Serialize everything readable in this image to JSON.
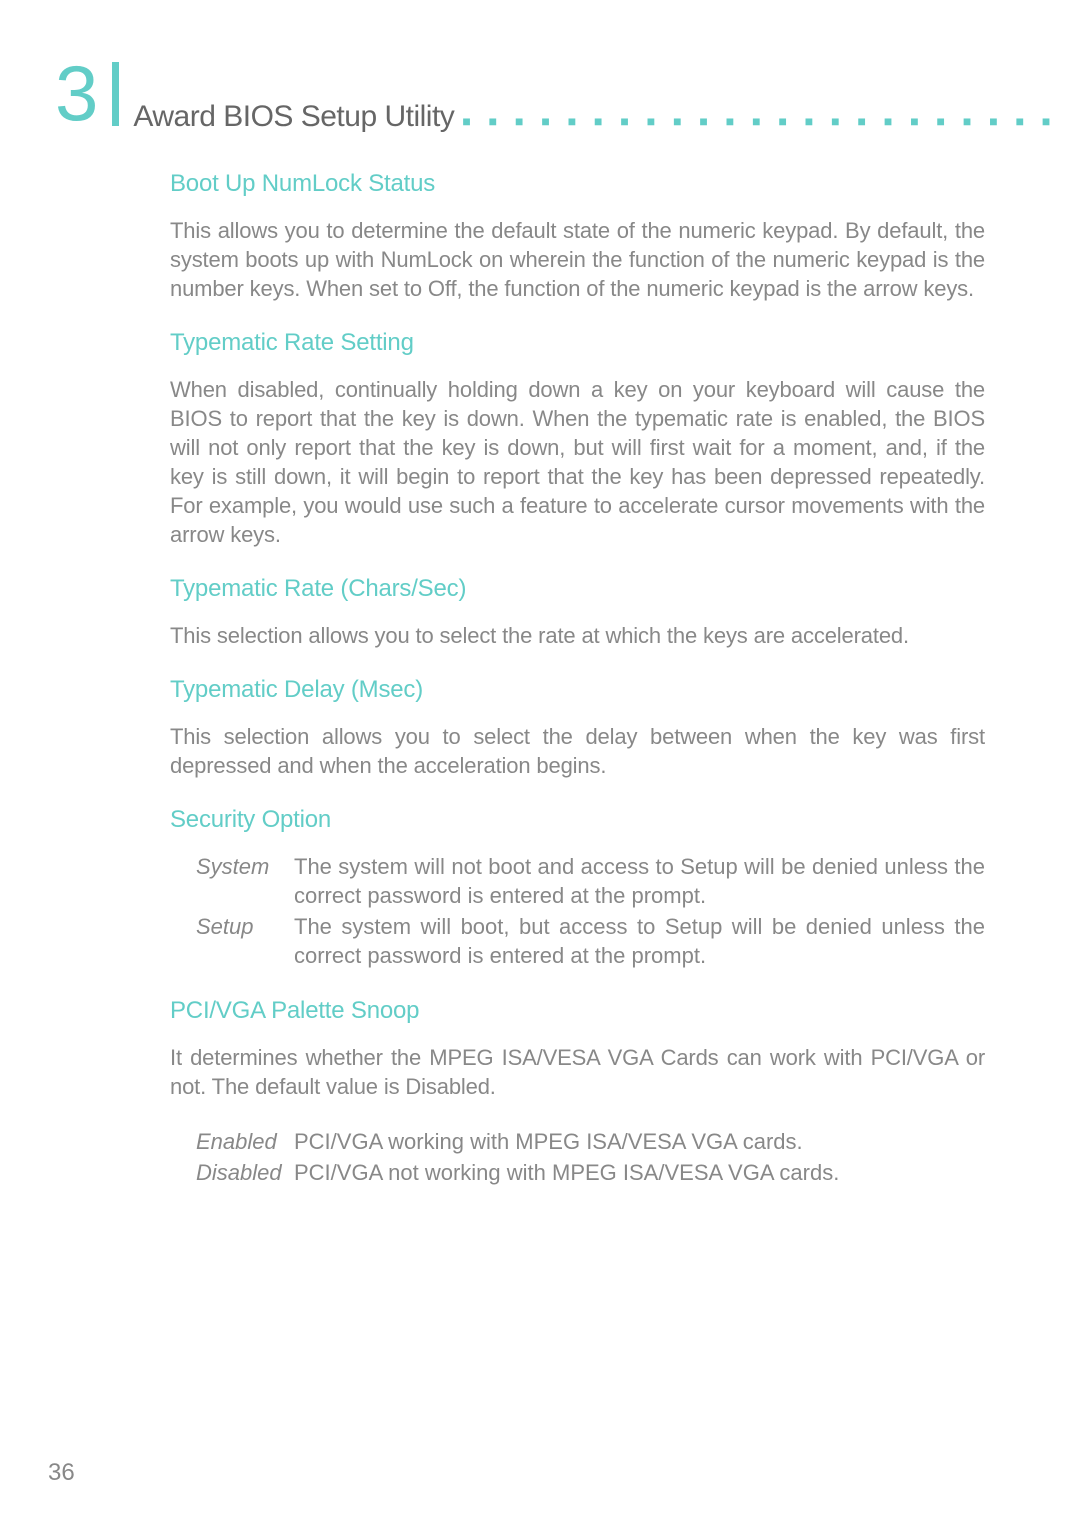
{
  "chapter": {
    "number": "3",
    "title": "Award BIOS Setup Utility"
  },
  "sections": {
    "s1": {
      "title": "Boot Up NumLock Status",
      "body": "This allows you to determine the default state of the numeric keypad. By default, the system boots up with NumLock on wherein the function of the numeric keypad is the number keys. When set to Off, the function of the numeric keypad is the arrow keys."
    },
    "s2": {
      "title": "Typematic Rate Setting",
      "body": "When disabled, continually holding down a key on your keyboard will cause the BIOS to report that the key is down. When the typematic rate is enabled, the BIOS will not only report that the key is down, but will first wait for a moment, and, if the key is still down, it will begin to report that the key has been depressed repeatedly. For example, you would use such a feature to accelerate cursor movements with the arrow keys."
    },
    "s3": {
      "title": "Typematic Rate (Chars/Sec)",
      "body": "This selection allows you to select the rate at which the keys are accelerated."
    },
    "s4": {
      "title": "Typematic Delay (Msec)",
      "body": "This selection allows you to select the delay between when the key was first depressed and when the acceleration begins."
    },
    "s5": {
      "title": "Security Option",
      "options": [
        {
          "label": "System",
          "desc": "The system will not boot and access to Setup will be denied unless the correct password is entered at the prompt."
        },
        {
          "label": "Setup",
          "desc": "The system will boot, but access to Setup will be denied unless the correct password is entered at the prompt."
        }
      ]
    },
    "s6": {
      "title": "PCI/VGA Palette Snoop",
      "body": "It determines whether the MPEG ISA/VESA VGA Cards can work with PCI/VGA or not. The default value is Disabled.",
      "options": [
        {
          "label": "Enabled",
          "desc": "PCI/VGA working with MPEG ISA/VESA VGA cards."
        },
        {
          "label": "Disabled",
          "desc": "PCI/VGA not working with MPEG ISA/VESA VGA cards."
        }
      ]
    }
  },
  "page_number": "36",
  "colors": {
    "accent": "#62cdc7",
    "body_text": "#888888",
    "chapter_title": "#666666",
    "background": "#ffffff"
  },
  "dots": "■ ■ ■ ■ ■ ■ ■ ■ ■ ■ ■ ■ ■ ■ ■ ■ ■ ■ ■ ■ ■ ■ ■ ■ ■ ■ ■ ■ ■ ■ ■ ■"
}
